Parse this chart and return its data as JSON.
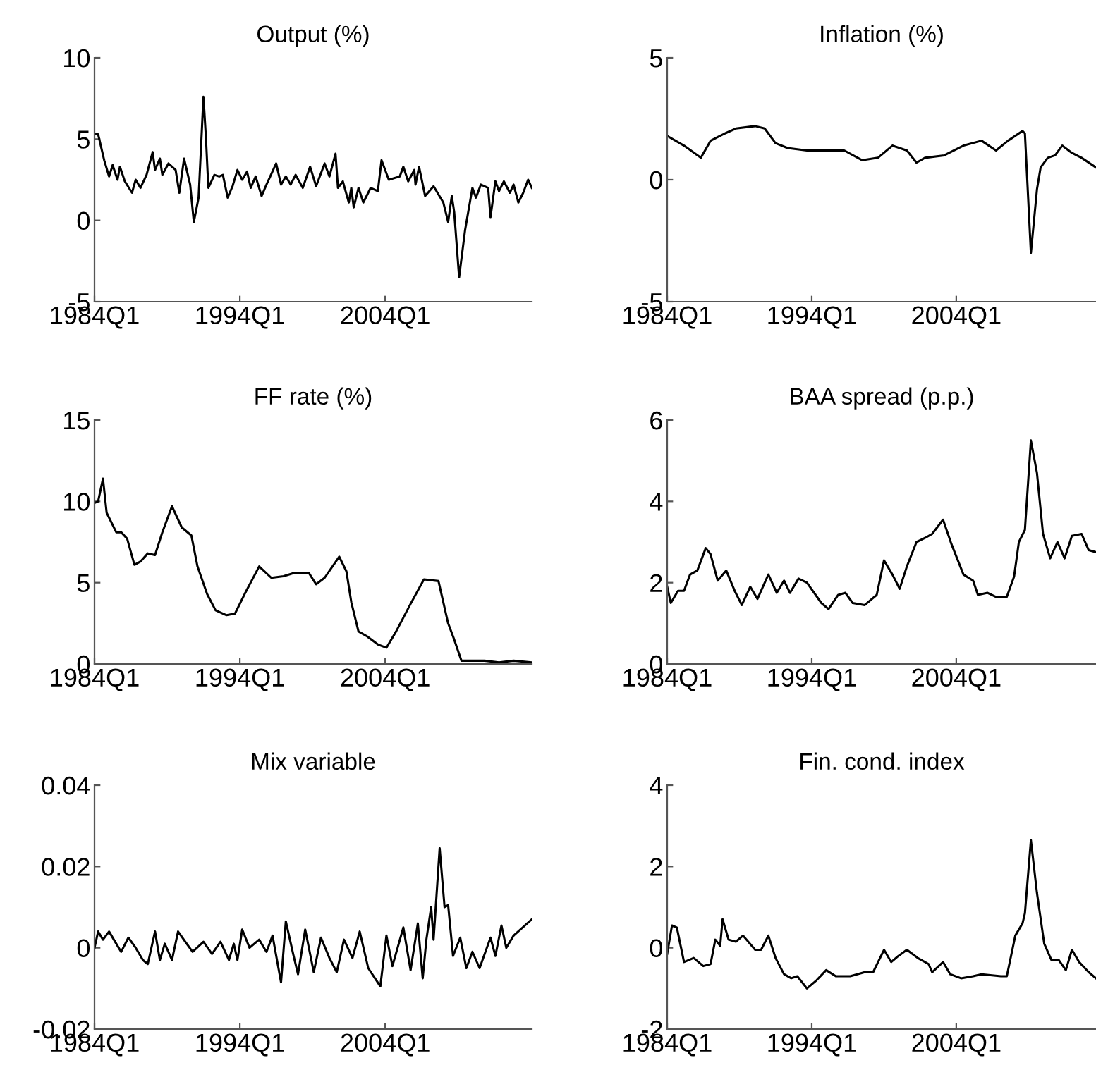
{
  "chart_data": [
    {
      "type": "line",
      "title": "Output (%)",
      "color": "#000000",
      "xlim": [
        "1984-01",
        "2014-02"
      ],
      "xticks": [
        {
          "value": "1984-01",
          "label": "1984Q1"
        },
        {
          "value": "1994-01",
          "label": "1994Q1"
        },
        {
          "value": "2004-01",
          "label": "2004Q1"
        }
      ],
      "ylim": [
        -5,
        10
      ],
      "yticks": [
        -5,
        0,
        5,
        10
      ],
      "x": [
        "1984-02",
        "1984-04",
        "1984-09",
        "1985-01",
        "1985-04",
        "1985-08",
        "1985-10",
        "1986-02",
        "1986-08",
        "1986-11",
        "1987-03",
        "1987-08",
        "1988-01",
        "1988-03",
        "1988-07",
        "1988-09",
        "1989-02",
        "1989-08",
        "1989-11",
        "1990-03",
        "1990-08",
        "1990-11",
        "1991-03",
        "1991-07",
        "1991-09",
        "1991-11",
        "1992-04",
        "1992-08",
        "1992-11",
        "1993-03",
        "1993-07",
        "1993-11",
        "1994-03",
        "1994-07",
        "1994-10",
        "1995-02",
        "1995-07",
        "1995-11",
        "1996-07",
        "1996-11",
        "1997-03",
        "1997-07",
        "1997-11",
        "1998-05",
        "1998-11",
        "1999-04",
        "1999-11",
        "2000-03",
        "2000-08",
        "2000-10",
        "2001-02",
        "2001-07",
        "2001-09",
        "2001-11",
        "2002-03",
        "2002-07",
        "2003-01",
        "2003-07",
        "2003-10",
        "2004-04",
        "2005-01",
        "2005-04",
        "2005-08",
        "2006-01",
        "2006-02",
        "2006-05",
        "2006-10",
        "2007-05",
        "2008-01",
        "2008-05",
        "2008-08",
        "2008-10",
        "2009-02",
        "2009-07",
        "2010-01",
        "2010-04",
        "2010-08",
        "2011-02",
        "2011-04",
        "2011-08",
        "2011-11",
        "2012-03",
        "2012-08",
        "2012-11",
        "2013-03",
        "2013-07",
        "2013-11",
        "2014-02"
      ],
      "values": [
        5.3,
        5.3,
        3.7,
        2.7,
        3.4,
        2.5,
        3.3,
        2.4,
        1.7,
        2.5,
        2.0,
        2.8,
        4.2,
        3.1,
        3.8,
        2.8,
        3.5,
        3.1,
        1.7,
        3.8,
        2.2,
        -0.1,
        1.4,
        7.6,
        5.1,
        2.0,
        2.8,
        2.7,
        2.8,
        1.4,
        2.1,
        3.1,
        2.5,
        3.0,
        2.0,
        2.7,
        1.5,
        2.2,
        3.5,
        2.2,
        2.7,
        2.2,
        2.8,
        2.0,
        3.3,
        2.1,
        3.5,
        2.7,
        4.1,
        2.0,
        2.4,
        1.1,
        2.0,
        0.8,
        2.0,
        1.1,
        2.0,
        1.8,
        3.7,
        2.5,
        2.7,
        3.3,
        2.4,
        3.1,
        2.2,
        3.3,
        1.5,
        2.1,
        1.1,
        -0.1,
        1.5,
        0.5,
        -3.5,
        -0.6,
        2.0,
        1.4,
        2.2,
        2.0,
        0.2,
        2.4,
        1.8,
        2.4,
        1.7,
        2.2,
        1.1,
        1.7,
        2.5,
        2.0
      ]
    },
    {
      "type": "line",
      "title": "Inflation (%)",
      "color": "#000000",
      "xlim": [
        "1984-01",
        "2013-09"
      ],
      "xticks": [
        {
          "value": "1984-01",
          "label": "1984Q1"
        },
        {
          "value": "1994-01",
          "label": "1994Q1"
        },
        {
          "value": "2004-01",
          "label": "2004Q1"
        }
      ],
      "ylim": [
        -5,
        5
      ],
      "yticks": [
        -5,
        0,
        5
      ],
      "x": [
        "1984-01",
        "1985-03",
        "1986-05",
        "1987-01",
        "1988-01",
        "1988-10",
        "1990-02",
        "1990-10",
        "1991-07",
        "1992-05",
        "1993-09",
        "1995-05",
        "1996-04",
        "1997-07",
        "1998-08",
        "1999-08",
        "2000-08",
        "2001-04",
        "2001-11",
        "2003-03",
        "2004-07",
        "2005-10",
        "2006-10",
        "2007-08",
        "2008-08",
        "2008-10",
        "2009-03",
        "2009-08",
        "2009-11",
        "2010-05",
        "2010-11",
        "2011-05",
        "2012-01",
        "2012-09",
        "2013-09"
      ],
      "values": [
        1.8,
        1.4,
        0.9,
        1.6,
        1.9,
        2.1,
        2.2,
        2.1,
        1.5,
        1.3,
        1.2,
        1.2,
        1.2,
        0.8,
        0.9,
        1.4,
        1.2,
        0.7,
        0.9,
        1.0,
        1.4,
        1.6,
        1.2,
        1.6,
        2.0,
        1.9,
        -3.0,
        -0.4,
        0.5,
        0.9,
        1.0,
        1.4,
        1.1,
        0.9,
        0.5
      ]
    },
    {
      "type": "line",
      "title": "FF rate (%)",
      "color": "#000000",
      "xlim": [
        "1984-01",
        "2014-02"
      ],
      "xticks": [
        {
          "value": "1984-01",
          "label": "1984Q1"
        },
        {
          "value": "1994-01",
          "label": "1994Q1"
        },
        {
          "value": "2004-01",
          "label": "2004Q1"
        }
      ],
      "ylim": [
        0,
        15
      ],
      "yticks": [
        0,
        5,
        10,
        15
      ],
      "x": [
        "1984-01",
        "1984-04",
        "1984-08",
        "1984-11",
        "1985-07",
        "1985-11",
        "1986-04",
        "1986-10",
        "1987-03",
        "1987-09",
        "1988-03",
        "1988-09",
        "1989-05",
        "1990-01",
        "1990-09",
        "1991-02",
        "1991-10",
        "1992-05",
        "1993-02",
        "1993-09",
        "1994-05",
        "1995-05",
        "1996-03",
        "1997-01",
        "1997-10",
        "1998-10",
        "1999-04",
        "1999-11",
        "2000-11",
        "2001-05",
        "2001-09",
        "2002-03",
        "2002-10",
        "2003-07",
        "2004-02",
        "2004-10",
        "2005-10",
        "2006-09",
        "2007-09",
        "2008-05",
        "2008-10",
        "2009-04",
        "2010-01",
        "2010-11",
        "2011-11",
        "2012-11",
        "2014-02"
      ],
      "values": [
        9.9,
        10.0,
        11.4,
        9.3,
        8.1,
        8.1,
        7.7,
        6.1,
        6.3,
        6.8,
        6.7,
        8.1,
        9.7,
        8.4,
        7.9,
        6.0,
        4.3,
        3.3,
        3.0,
        3.1,
        4.3,
        6.0,
        5.3,
        5.4,
        5.6,
        5.6,
        4.9,
        5.3,
        6.6,
        5.7,
        3.8,
        2.0,
        1.7,
        1.2,
        1.0,
        2.0,
        3.7,
        5.2,
        5.1,
        2.5,
        1.5,
        0.2,
        0.2,
        0.2,
        0.1,
        0.2,
        0.1
      ]
    },
    {
      "type": "line",
      "title": "BAA spread (p.p.)",
      "color": "#000000",
      "xlim": [
        "1984-01",
        "2013-09"
      ],
      "xticks": [
        {
          "value": "1984-01",
          "label": "1984Q1"
        },
        {
          "value": "1994-01",
          "label": "1994Q1"
        },
        {
          "value": "2004-01",
          "label": "2004Q1"
        }
      ],
      "ylim": [
        0,
        6
      ],
      "yticks": [
        0,
        2,
        4,
        6
      ],
      "x": [
        "1984-01",
        "1984-04",
        "1984-10",
        "1985-03",
        "1985-08",
        "1986-02",
        "1986-09",
        "1987-01",
        "1987-07",
        "1988-02",
        "1988-09",
        "1989-03",
        "1989-10",
        "1990-04",
        "1991-01",
        "1991-08",
        "1992-02",
        "1992-07",
        "1993-02",
        "1993-09",
        "1994-09",
        "1995-03",
        "1995-11",
        "1996-05",
        "1996-11",
        "1997-09",
        "1998-07",
        "1999-01",
        "1999-08",
        "2000-02",
        "2000-08",
        "2001-04",
        "2001-11",
        "2002-05",
        "2003-02",
        "2003-09",
        "2004-07",
        "2005-03",
        "2005-07",
        "2006-03",
        "2006-10",
        "2007-07",
        "2008-01",
        "2008-05",
        "2008-10",
        "2009-03",
        "2009-08",
        "2010-01",
        "2010-07",
        "2011-01",
        "2011-07",
        "2012-01",
        "2012-09",
        "2013-03",
        "2013-09"
      ],
      "values": [
        1.9,
        1.5,
        1.8,
        1.8,
        2.2,
        2.3,
        2.85,
        2.7,
        2.05,
        2.3,
        1.8,
        1.45,
        1.9,
        1.6,
        2.2,
        1.75,
        2.05,
        1.75,
        2.1,
        2.0,
        1.5,
        1.35,
        1.7,
        1.75,
        1.5,
        1.45,
        1.7,
        2.55,
        2.2,
        1.85,
        2.4,
        3.0,
        3.1,
        3.2,
        3.55,
        2.95,
        2.2,
        2.05,
        1.7,
        1.75,
        1.65,
        1.65,
        2.15,
        3.0,
        3.3,
        5.5,
        4.7,
        3.2,
        2.6,
        3.0,
        2.6,
        3.15,
        3.2,
        2.8,
        2.75
      ]
    },
    {
      "type": "line",
      "title": "Mix variable",
      "color": "#000000",
      "xlim": [
        "1984-01",
        "2014-02"
      ],
      "xticks": [
        {
          "value": "1984-01",
          "label": "1984Q1"
        },
        {
          "value": "1994-01",
          "label": "1994Q1"
        },
        {
          "value": "2004-01",
          "label": "2004Q1"
        }
      ],
      "ylim": [
        -0.02,
        0.04
      ],
      "yticks": [
        {
          "value": -0.02,
          "label": "-0.02"
        },
        0,
        0.02,
        0.04
      ],
      "x": [
        "1984-01",
        "1984-04",
        "1984-08",
        "1985-01",
        "1985-07",
        "1985-11",
        "1986-05",
        "1986-11",
        "1987-05",
        "1987-09",
        "1988-03",
        "1988-07",
        "1988-11",
        "1989-05",
        "1989-10",
        "1990-04",
        "1990-10",
        "1991-07",
        "1992-02",
        "1992-09",
        "1993-04",
        "1993-08",
        "1993-11",
        "1994-03",
        "1994-09",
        "1995-05",
        "1995-11",
        "1996-04",
        "1996-11",
        "1997-03",
        "1997-09",
        "1998-01",
        "1998-07",
        "1999-02",
        "1999-08",
        "2000-03",
        "2000-09",
        "2001-03",
        "2001-10",
        "2002-04",
        "2002-11",
        "2003-09",
        "2004-02",
        "2004-07",
        "2005-04",
        "2005-10",
        "2006-04",
        "2006-08",
        "2006-11",
        "2007-03",
        "2007-05",
        "2007-10",
        "2008-02",
        "2008-05",
        "2008-09",
        "2009-03",
        "2009-08",
        "2010-01",
        "2010-07",
        "2011-04",
        "2011-08",
        "2012-01",
        "2012-05",
        "2012-11",
        "2014-02"
      ],
      "values": [
        0.0,
        0.004,
        0.002,
        0.004,
        0.001,
        -0.001,
        0.0025,
        0.0,
        -0.003,
        -0.004,
        0.004,
        -0.003,
        0.001,
        -0.003,
        0.004,
        0.0015,
        -0.001,
        0.0015,
        -0.0015,
        0.0015,
        -0.003,
        0.001,
        -0.003,
        0.0045,
        0.0,
        0.002,
        -0.001,
        0.003,
        -0.0085,
        0.0065,
        -0.0015,
        -0.0065,
        0.0045,
        -0.006,
        0.0025,
        -0.0025,
        -0.006,
        0.002,
        -0.0025,
        0.004,
        -0.005,
        -0.0095,
        0.003,
        -0.0045,
        0.005,
        -0.0055,
        0.006,
        -0.0075,
        0.002,
        0.01,
        0.002,
        0.0245,
        0.01,
        0.0105,
        -0.002,
        0.0025,
        -0.005,
        -0.001,
        -0.005,
        0.0025,
        -0.002,
        0.0055,
        0.0,
        0.003,
        0.007
      ]
    },
    {
      "type": "line",
      "title": "Fin. cond. index",
      "color": "#000000",
      "xlim": [
        "1984-01",
        "2013-09"
      ],
      "xticks": [
        {
          "value": "1984-01",
          "label": "1984Q1"
        },
        {
          "value": "1994-01",
          "label": "1994Q1"
        },
        {
          "value": "2004-01",
          "label": "2004Q1"
        }
      ],
      "ylim": [
        -2,
        4
      ],
      "yticks": [
        -2,
        0,
        2,
        4
      ],
      "x": [
        "1984-01",
        "1984-05",
        "1984-09",
        "1985-03",
        "1985-11",
        "1986-07",
        "1987-01",
        "1987-05",
        "1987-09",
        "1987-11",
        "1988-04",
        "1988-10",
        "1989-04",
        "1990-02",
        "1990-07",
        "1991-01",
        "1991-07",
        "1992-02",
        "1992-08",
        "1993-01",
        "1993-09",
        "1994-05",
        "1995-01",
        "1995-09",
        "1996-09",
        "1997-09",
        "1998-04",
        "1999-01",
        "1999-07",
        "2000-01",
        "2000-08",
        "2001-05",
        "2002-02",
        "2002-05",
        "2003-02",
        "2003-08",
        "2004-05",
        "2005-03",
        "2005-10",
        "2007-02",
        "2007-07",
        "2008-02",
        "2008-08",
        "2008-10",
        "2009-03",
        "2009-08",
        "2010-02",
        "2010-08",
        "2011-02",
        "2011-08",
        "2012-01",
        "2012-07",
        "2013-03",
        "2013-09"
      ],
      "values": [
        -0.15,
        0.55,
        0.5,
        -0.35,
        -0.25,
        -0.45,
        -0.4,
        0.2,
        0.05,
        0.7,
        0.2,
        0.15,
        0.3,
        -0.05,
        -0.05,
        0.3,
        -0.25,
        -0.65,
        -0.75,
        -0.7,
        -1.0,
        -0.8,
        -0.55,
        -0.7,
        -0.7,
        -0.6,
        -0.6,
        -0.05,
        -0.35,
        -0.2,
        -0.05,
        -0.25,
        -0.4,
        -0.6,
        -0.35,
        -0.65,
        -0.75,
        -0.7,
        -0.65,
        -0.7,
        -0.7,
        0.3,
        0.6,
        0.85,
        2.65,
        1.35,
        0.1,
        -0.3,
        -0.3,
        -0.55,
        -0.05,
        -0.35,
        -0.6,
        -0.75
      ]
    }
  ]
}
